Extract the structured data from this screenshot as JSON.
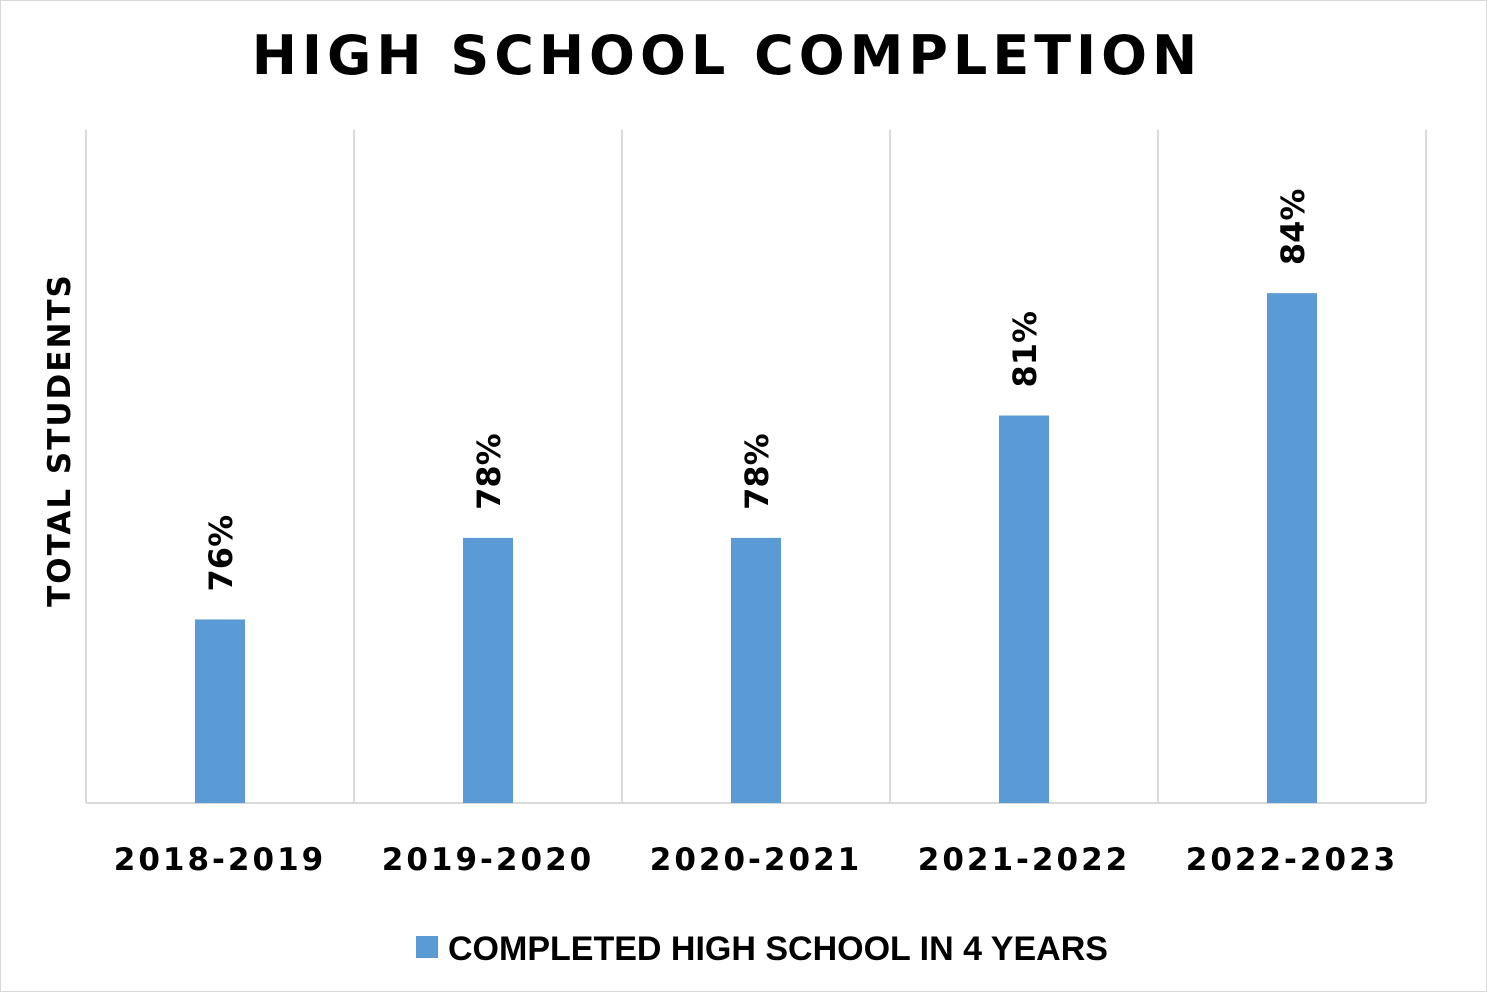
{
  "chart_data": {
    "type": "bar",
    "title": "HIGH SCHOOL COMPLETION",
    "xlabel": "",
    "ylabel": "TOTAL STUDENTS",
    "categories": [
      "2018-2019",
      "2019-2020",
      "2020-2021",
      "2021-2022",
      "2022-2023"
    ],
    "series": [
      {
        "name": "COMPLETED HIGH SCHOOL IN 4 YEARS",
        "values": [
          76,
          78,
          78,
          81,
          84
        ],
        "labels": [
          "76%",
          "78%",
          "78%",
          "81%",
          "84%"
        ],
        "color": "#5b9bd5"
      }
    ],
    "ylim": [
      71.5,
      88
    ],
    "grid": "vertical category separators",
    "legend_position": "bottom"
  }
}
